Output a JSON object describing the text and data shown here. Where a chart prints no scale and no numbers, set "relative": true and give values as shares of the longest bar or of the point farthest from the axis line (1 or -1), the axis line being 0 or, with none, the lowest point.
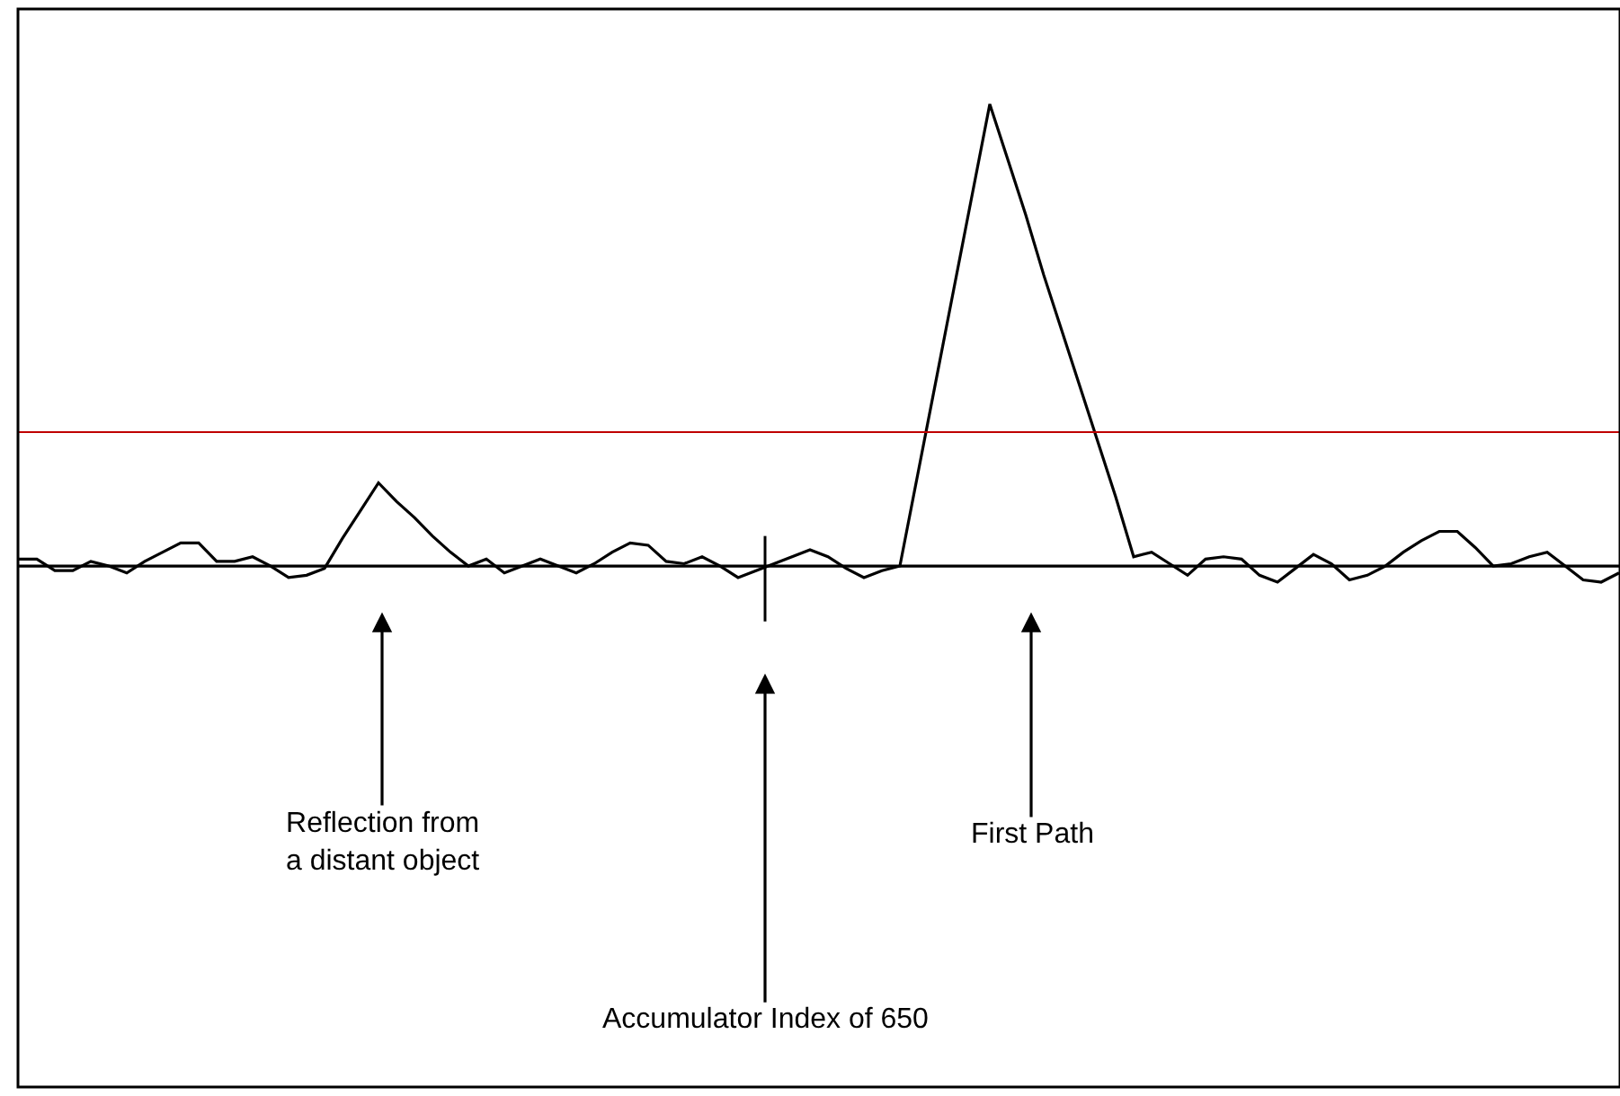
{
  "chart_data": {
    "type": "line",
    "relative": true,
    "marker": "none",
    "line_style": "solid",
    "categories": [
      null,
      null,
      null,
      null,
      null,
      null,
      null,
      null,
      null,
      null,
      null,
      null,
      null,
      null,
      null,
      null,
      null,
      null,
      null,
      null,
      null,
      null,
      null,
      null,
      null,
      null,
      null,
      null,
      null,
      null,
      null,
      null,
      null,
      null,
      null,
      null,
      null,
      null,
      null,
      null,
      null,
      null,
      null,
      null,
      null,
      null,
      null,
      null,
      null,
      null,
      null,
      null,
      null,
      null,
      null,
      null,
      null,
      null,
      null,
      null,
      null,
      null,
      null,
      null,
      null,
      null,
      null,
      null,
      null,
      null,
      null,
      null,
      null,
      null,
      null,
      null,
      null,
      null,
      null,
      null,
      null,
      null,
      null,
      null,
      null,
      null,
      null,
      null,
      null,
      null
    ],
    "series": [
      {
        "color": "#000000",
        "values": [
          0.015,
          0.015,
          -0.01,
          -0.01,
          0.01,
          0.0,
          -0.015,
          0.01,
          0.03,
          0.05,
          0.05,
          0.01,
          0.01,
          0.02,
          0.0,
          -0.025,
          -0.02,
          -0.005,
          0.06,
          0.12,
          0.18,
          0.14,
          0.105,
          0.065,
          0.03,
          0.0,
          0.015,
          -0.015,
          0.0,
          0.015,
          0.0,
          -0.015,
          0.005,
          0.03,
          0.05,
          0.045,
          0.01,
          0.005,
          0.02,
          0.0,
          -0.025,
          -0.01,
          0.005,
          0.02,
          0.035,
          0.02,
          -0.005,
          -0.025,
          -0.01,
          0.0,
          0.2,
          0.4,
          0.6,
          0.8,
          1.0,
          0.88,
          0.76,
          0.63,
          0.51,
          0.39,
          0.27,
          0.15,
          0.02,
          0.03,
          0.005,
          -0.02,
          0.015,
          0.02,
          0.015,
          -0.02,
          -0.035,
          -0.005,
          0.025,
          0.005,
          -0.03,
          -0.02,
          0.0,
          0.03,
          0.055,
          0.075,
          0.075,
          0.04,
          0.0,
          0.005,
          0.02,
          0.03,
          0.0,
          -0.03,
          -0.035,
          -0.015
        ]
      }
    ],
    "ref_lines": [
      {
        "axis": "y",
        "value": 0.29,
        "color": "#c00000"
      }
    ],
    "annotations": [
      "Reflection from a distant object",
      "First Path",
      "Accumulator Index of 650"
    ]
  }
}
